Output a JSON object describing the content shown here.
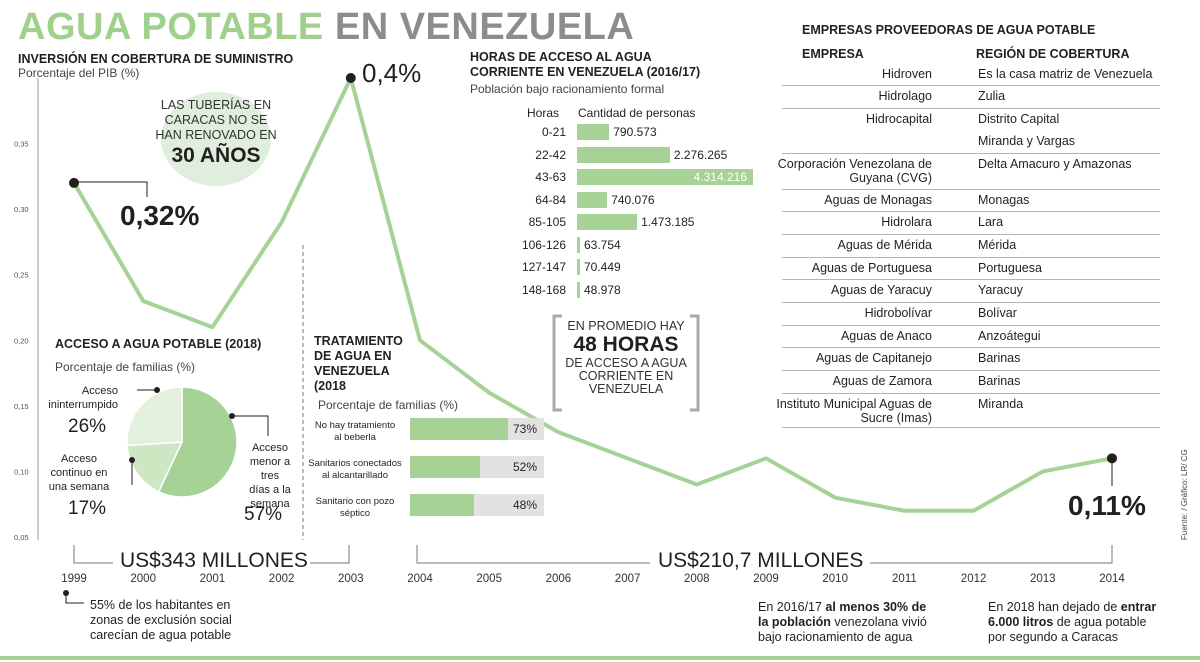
{
  "title": {
    "part1": "AGUA POTABLE",
    "part2": "EN VENEZUELA"
  },
  "investment": {
    "title": "INVERSIÓN EN COBERTURA DE SUMINISTRO",
    "subtitle": "Porcentaje del PIB (%)",
    "peak_label": "0,4%",
    "start_label": "0,32%",
    "end_label": "0,11%",
    "bubble": {
      "line1": "LAS TUBERÍAS EN",
      "line2": "CARACAS NO SE",
      "line3": "HAN RENOVADO EN",
      "big": "30 AÑOS"
    },
    "bracket1": "US$343 MILLONES",
    "bracket2": "US$210,7 MILLONES",
    "note_left": {
      "l1": "55% de los habitantes en",
      "l2": "zonas de exclusión social",
      "l3": "carecían  de agua potable"
    },
    "note_mid": {
      "l1a": "En 2016/17 ",
      "l1b": "al menos 30% de",
      "l2a": "la población",
      "l2b": " venezolana vivió",
      "l3": "bajo racionamiento de agua"
    },
    "note_right": {
      "l1a": "En 2018 han dejado de ",
      "l1b": "entrar",
      "l2a": "6.000 litros",
      "l2b": " de agua potable",
      "l3": "por segundo a Caracas"
    },
    "source": "Fuente: / Gráfico: LR/ CG"
  },
  "chart_data": [
    {
      "type": "line",
      "title": "INVERSIÓN EN COBERTURA DE SUMINISTRO",
      "ylabel": "Porcentaje del PIB (%)",
      "x": [
        1999,
        2000,
        2001,
        2002,
        2003,
        2004,
        2005,
        2006,
        2007,
        2008,
        2009,
        2010,
        2011,
        2012,
        2013,
        2014
      ],
      "values": [
        0.32,
        0.23,
        0.21,
        0.29,
        0.4,
        0.2,
        0.16,
        0.13,
        0.11,
        0.09,
        0.11,
        0.08,
        0.07,
        0.07,
        0.1,
        0.11
      ],
      "yticks": [
        "0,05",
        "0,10",
        "0,15",
        "0,20",
        "0,25",
        "0,30",
        "0,35"
      ],
      "ylim": [
        0.05,
        0.4
      ],
      "color": "#a6d395"
    },
    {
      "type": "bar",
      "title": "HORAS DE ACCESO AL AGUA CORRIENTE EN VENEZUELA (2016/17)",
      "subtitle": "Población bajo racionamiento formal",
      "col_hours": "Horas",
      "col_people": "Cantidad de personas",
      "categories": [
        "0-21",
        "22-42",
        "43-63",
        "64-84",
        "85-105",
        "106-126",
        "127-147",
        "148-168"
      ],
      "values": [
        790573,
        2276265,
        4314216,
        740076,
        1473185,
        63754,
        70449,
        48978
      ],
      "labels": [
        "790.573",
        "2.276.265",
        "4.314.216",
        "740.076",
        "1.473.185",
        "63.754",
        "70.449",
        "48.978"
      ],
      "color": "#a6d395"
    },
    {
      "type": "pie",
      "title": "ACCESO A AGUA POTABLE (2018)",
      "subtitle": "Porcentaje de familias (%)",
      "categories": [
        "Acceso ininterrumpido",
        "Acceso continuo en una semana",
        "Acceso menor a tres días a la semana"
      ],
      "values": [
        26,
        17,
        57
      ],
      "labels": [
        "26%",
        "17%",
        "57%"
      ],
      "colors": [
        "#e3f0dc",
        "#cfe6c3",
        "#a6d395"
      ]
    },
    {
      "type": "bar",
      "title": "TRATAMIENTO DE AGUA EN VENEZUELA (2018",
      "subtitle": "Porcentaje de familias (%)",
      "categories": [
        "No hay tratamiento al beberla",
        "Sanitarios conectados al alcantarillado",
        "Sanitario con pozo séptico"
      ],
      "values": [
        73,
        52,
        48
      ],
      "labels": [
        "73%",
        "52%",
        "48%"
      ],
      "max": 100,
      "color": "#a6d395"
    }
  ],
  "pie_labels": {
    "a": {
      "l1": "Acceso",
      "l2": "ininterrumpido"
    },
    "b": {
      "l1": "Acceso",
      "l2": "continuo en",
      "l3": "una semana"
    },
    "c": {
      "l1": "Acceso",
      "l2": "menor a tres",
      "l3": "días a la",
      "l4": "semana"
    }
  },
  "treatment_title": {
    "l1": "TRATAMIENTO",
    "l2": "DE AGUA EN",
    "l3": "VENEZUELA",
    "l4": "(2018"
  },
  "treatment_cats": [
    {
      "l1": "No hay tratamiento",
      "l2": "al beberla"
    },
    {
      "l1": "Sanitarios conectados",
      "l2": "al alcantarillado"
    },
    {
      "l1": "Sanitario con pozo",
      "l2": "séptico"
    }
  ],
  "hours_title": {
    "l1": "HORAS DE ACCESO AL AGUA",
    "l2": "CORRIENTE EN VENEZUELA (2016/17)"
  },
  "avg_box": {
    "l1": "EN PROMEDIO HAY",
    "big": "48 HORAS",
    "l2": "DE ACCESO A AGUA",
    "l3": "CORRIENTE EN",
    "l4": "VENEZUELA"
  },
  "providers": {
    "title": "EMPRESAS PROVEEDORAS DE AGUA POTABLE",
    "col1": "EMPRESA",
    "col2": "REGIÓN DE COBERTURA",
    "rows": [
      {
        "empresa": "Hidroven",
        "region": "Es la casa matriz de Venezuela"
      },
      {
        "empresa": "Hidrolago",
        "region": "Zulia"
      },
      {
        "empresa": "Hidrocapital",
        "region": "Distrito Capital"
      },
      {
        "empresa": "",
        "region": "Miranda y Vargas"
      },
      {
        "empresa": "Corporación Venezolana de Guyana (CVG)",
        "region": "Delta Amacuro y Amazonas"
      },
      {
        "empresa": "Aguas de Monagas",
        "region": "Monagas"
      },
      {
        "empresa": "Hidrolara",
        "region": "Lara"
      },
      {
        "empresa": "Aguas de Mérida",
        "region": "Mérida"
      },
      {
        "empresa": "Aguas de Portuguesa",
        "region": "Portuguesa"
      },
      {
        "empresa": "Aguas de Yaracuy",
        "region": "Yaracuy"
      },
      {
        "empresa": "Hidrobolívar",
        "region": "Bolívar"
      },
      {
        "empresa": "Aguas de Anaco",
        "region": "Anzoátegui"
      },
      {
        "empresa": "Aguas de Capitanejo",
        "region": "Barinas"
      },
      {
        "empresa": "Aguas de Zamora",
        "region": "Barinas"
      },
      {
        "empresa": "Instituto Municipal Aguas de Sucre (Imas)",
        "region": "Miranda"
      }
    ]
  }
}
